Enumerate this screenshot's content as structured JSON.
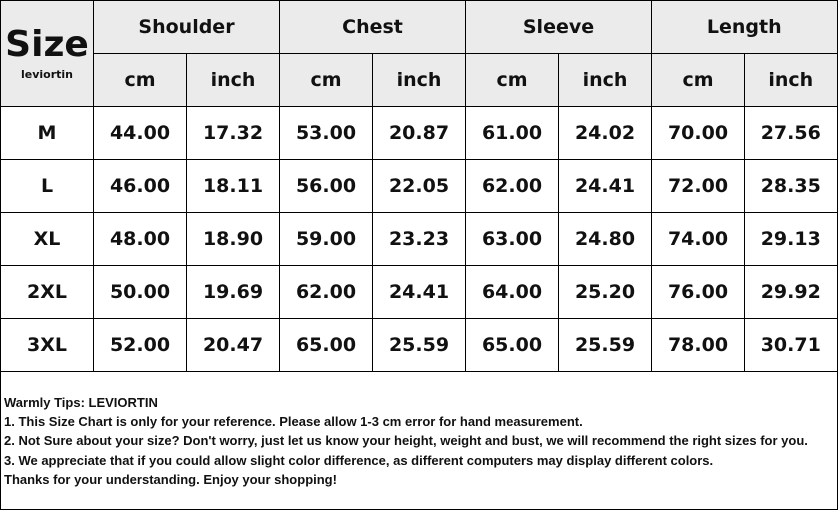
{
  "header": {
    "size_label": "Size",
    "brand": "leviortin",
    "groups": [
      {
        "name": "Shoulder",
        "units": [
          "cm",
          "inch"
        ]
      },
      {
        "name": "Chest",
        "units": [
          "cm",
          "inch"
        ]
      },
      {
        "name": "Sleeve",
        "units": [
          "cm",
          "inch"
        ]
      },
      {
        "name": "Length",
        "units": [
          "cm",
          "inch"
        ]
      }
    ]
  },
  "table": {
    "rows": [
      [
        "M",
        "44.00",
        "17.32",
        "53.00",
        "20.87",
        "61.00",
        "24.02",
        "70.00",
        "27.56"
      ],
      [
        "L",
        "46.00",
        "18.11",
        "56.00",
        "22.05",
        "62.00",
        "24.41",
        "72.00",
        "28.35"
      ],
      [
        "XL",
        "48.00",
        "18.90",
        "59.00",
        "23.23",
        "63.00",
        "24.80",
        "74.00",
        "29.13"
      ],
      [
        "2XL",
        "50.00",
        "19.69",
        "62.00",
        "24.41",
        "64.00",
        "25.20",
        "76.00",
        "29.92"
      ],
      [
        "3XL",
        "52.00",
        "20.47",
        "65.00",
        "25.59",
        "65.00",
        "25.59",
        "78.00",
        "30.71"
      ]
    ]
  },
  "tips": {
    "title": "Warmly Tips: LEVIORTIN",
    "lines": [
      "1. This Size Chart is only for your reference. Please allow 1-3 cm error for hand measurement.",
      "2. Not Sure about your size? Don't worry, just let us know your height, weight and bust, we will recommend the right sizes for you.",
      "3. We appreciate that if you could allow slight color difference, as different computers may display different colors.",
      "Thanks for your understanding. Enjoy your shopping!"
    ]
  }
}
